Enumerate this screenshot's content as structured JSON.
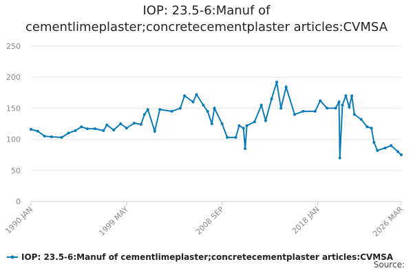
{
  "chart_data": {
    "type": "line",
    "title": "IOP: 23.5-6:Manuf of cementlimeplaster;concretecementplaster articles:CVMSA",
    "source": "Source:",
    "x": [
      "1990 JAN",
      "1990 SEP",
      "1991 MAY",
      "1992 JAN",
      "1993 JAN",
      "1993 SEP",
      "1994 MAY",
      "1994 DEC",
      "1995 JUL",
      "1996 APR",
      "1997 FEB",
      "1997 JUN",
      "1998 FEB",
      "1998 OCT",
      "1999 MAY",
      "2000 FEB",
      "2000 OCT",
      "2001 FEB",
      "2001 JUN",
      "2002 FEB",
      "2002 AUG",
      "2003 OCT",
      "2004 AUG",
      "2005 JAN",
      "2005 NOV",
      "2006 MAR",
      "2006 NOV",
      "2007 APR",
      "2007 SEP",
      "2007 DEC",
      "2008 SEP",
      "2009 MAR",
      "2010 JAN",
      "2010 MAY",
      "2010 OCT",
      "2010 DEC",
      "2011 FEB",
      "2011 NOV",
      "2012 JUL",
      "2012 DEC",
      "2013 JUL",
      "2014 JAN",
      "2014 JUN",
      "2014 DEC",
      "2015 OCT",
      "2016 AUG",
      "2017 OCT",
      "2018 APR",
      "2018 DEC",
      "2019 OCT",
      "2020 FEB",
      "2020 MAR",
      "2020 JUN",
      "2020 OCT",
      "2021 FEB",
      "2021 MAY",
      "2021 AUG",
      "2022 APR",
      "2022 NOV",
      "2023 APR",
      "2023 JUL",
      "2023 NOV",
      "2024 AUG",
      "2025 MAR",
      "2025 NOV",
      "2026 MAR"
    ],
    "series": [
      {
        "name": "IOP: 23.5-6:Manuf of cementlimeplaster;concretecementplaster articles:CVMSA",
        "color": "#0b7bb8",
        "values": [
          116,
          113,
          105,
          104,
          103,
          110,
          114,
          120,
          117,
          117,
          114,
          123,
          115,
          125,
          118,
          126,
          124,
          140,
          148,
          113,
          148,
          145,
          150,
          170,
          160,
          172,
          155,
          145,
          125,
          150,
          125,
          103,
          103,
          122,
          118,
          85,
          122,
          128,
          155,
          130,
          165,
          192,
          150,
          184,
          140,
          145,
          145,
          162,
          150,
          150,
          160,
          70,
          155,
          170,
          152,
          170,
          140,
          132,
          120,
          118,
          95,
          82,
          86,
          90,
          80,
          75
        ]
      }
    ],
    "xticks": [
      "1990 JAN",
      "1999 MAY",
      "2008 SEP",
      "2018 JAN",
      "2026 MAR"
    ],
    "ylim": [
      0,
      250
    ],
    "yticks": [
      0,
      50,
      100,
      150,
      200,
      250
    ],
    "grid": true
  }
}
